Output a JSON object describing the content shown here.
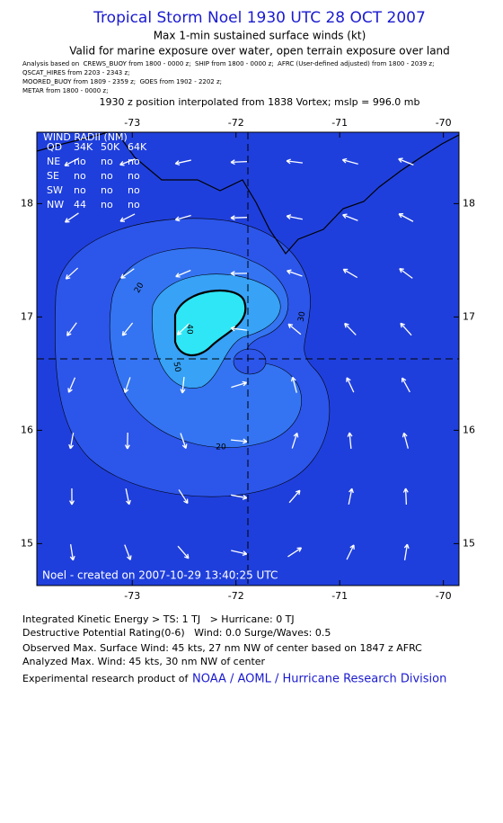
{
  "header": {
    "title": "Tropical Storm Noel 1930 UTC 28 OCT 2007",
    "subtitle": "Max 1-min sustained surface winds (kt)",
    "validity": "Valid for marine exposure over water, open terrain exposure over land",
    "sources": [
      "Analysis based on  CREWS_BUOY from 1800 - 0000 z;  SHIP from 1800 - 0000 z;  AFRC (User-defined adjusted) from 1800 - 2039 z;",
      "QSCAT_HIRES from 2203 - 2343 z;",
      "MOORED_BUOY from 1809 - 2359 z;  GOES from 1902 - 2202 z;",
      "METAR from 1800 - 0000 z;"
    ],
    "position_note": "1930 z position interpolated from 1838 Vortex; mslp = 996.0 mb"
  },
  "map": {
    "xlim": [
      -73.92,
      -69.85
    ],
    "ylim": [
      14.63,
      18.63
    ],
    "xticks": [
      -73,
      -72,
      -71,
      -70
    ],
    "yticks": [
      18,
      17,
      16,
      15
    ],
    "contour_labels": [
      "20",
      "40",
      "50",
      "30",
      "20"
    ],
    "footer": "Noel - created on 2007-10-29 13:40:25 UTC"
  },
  "wind_radii": {
    "title": "WIND RADII (NM)",
    "rows": [
      [
        "QD",
        "34K",
        "50K",
        "64K"
      ],
      [
        "NE",
        "no",
        "no",
        "no"
      ],
      [
        "SE",
        "no",
        "no",
        "no"
      ],
      [
        "SW",
        "no",
        "no",
        "no"
      ],
      [
        "NW",
        "44",
        "no",
        "no"
      ]
    ]
  },
  "summary": {
    "lines": [
      "Integrated Kinetic Energy > TS: 1 TJ   > Hurricane: 0 TJ",
      "Destructive Potential Rating(0-6)   Wind: 0.0 Surge/Waves: 0.5",
      "Observed Max. Surface Wind: 45 kts, 27 nm NW of center based on 1847 z AFRC",
      "Analyzed Max. Wind: 45 kts, 30 nm NW of center"
    ],
    "credit": "Experimental research product of",
    "credit_link": "NOAA / AOML / Hurricane Research Division"
  }
}
